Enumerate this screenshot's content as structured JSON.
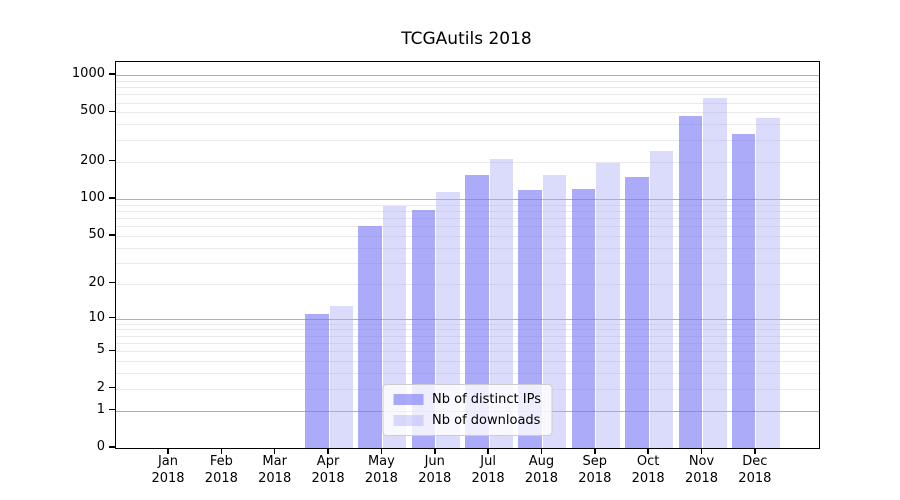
{
  "title": "TCGAutils 2018",
  "chart_data": {
    "type": "bar",
    "scale": "log1p",
    "title": "TCGAutils 2018",
    "categories": [
      "Jan",
      "Feb",
      "Mar",
      "Apr",
      "May",
      "Jun",
      "Jul",
      "Aug",
      "Sep",
      "Oct",
      "Nov",
      "Dec"
    ],
    "year": "2018",
    "series": [
      {
        "name": "Nb of distinct IPs",
        "color": "rgba(120,120,245,0.62)",
        "values": [
          0,
          0,
          0,
          11,
          60,
          81,
          156,
          117,
          120,
          150,
          471,
          336
        ]
      },
      {
        "name": "Nb of downloads",
        "color": "rgba(170,170,245,0.42)",
        "values": [
          0,
          0,
          0,
          13,
          87,
          114,
          211,
          155,
          194,
          246,
          652,
          453
        ]
      }
    ],
    "yticks": [
      0,
      1,
      2,
      5,
      10,
      20,
      50,
      100,
      200,
      500,
      1000
    ],
    "ylim": [
      0,
      1274
    ],
    "grid": true,
    "legend_position": "lower center",
    "colors": {
      "grid_major": "#b0b0b0",
      "grid_minor": "#e9e9e9",
      "spine": "#000000"
    }
  }
}
